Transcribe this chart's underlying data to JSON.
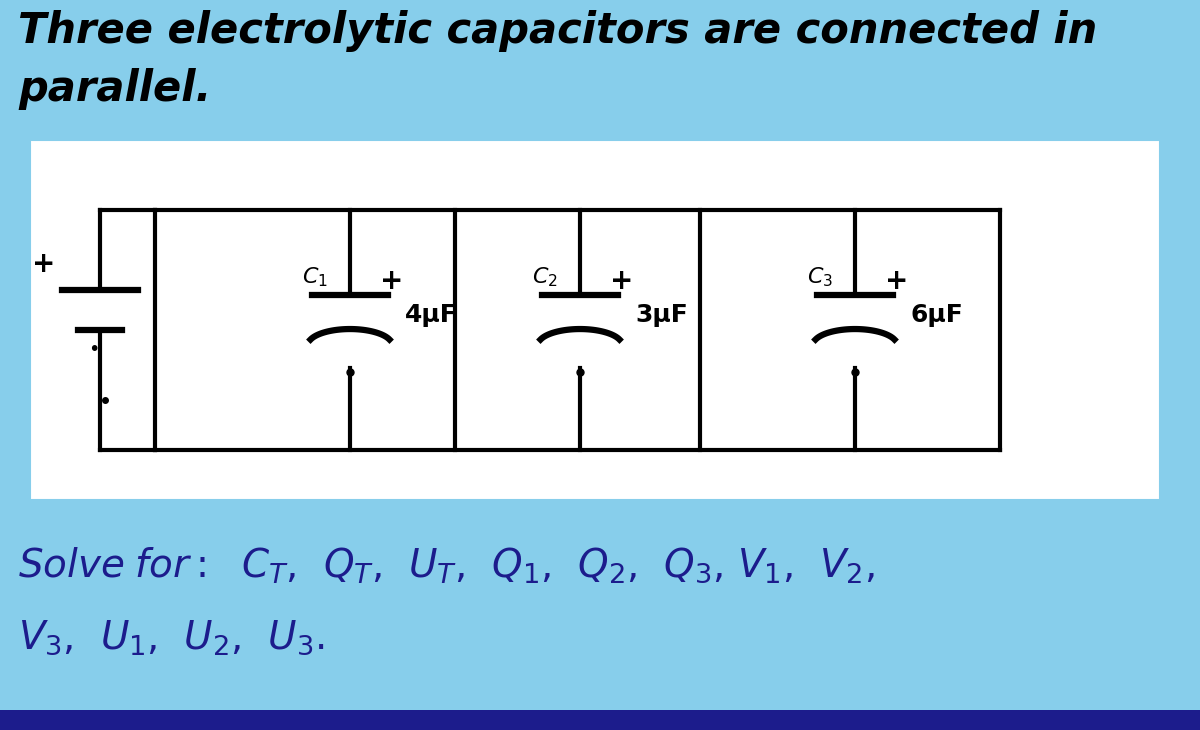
{
  "bg_color": "#87CEEB",
  "title_line1": "Three electrolytic capacitors are connected in",
  "title_line2": "parallel.",
  "title_color": "#000000",
  "title_fontsize": 30,
  "circuit_bg": "#FFFFFF",
  "solve_color": "#1C1C8C",
  "solve_fontsize": 28,
  "bottom_bar_color": "#1C1C8C",
  "cap_values": [
    "4μF",
    "3μF",
    "6μF"
  ],
  "lw": 3.0
}
